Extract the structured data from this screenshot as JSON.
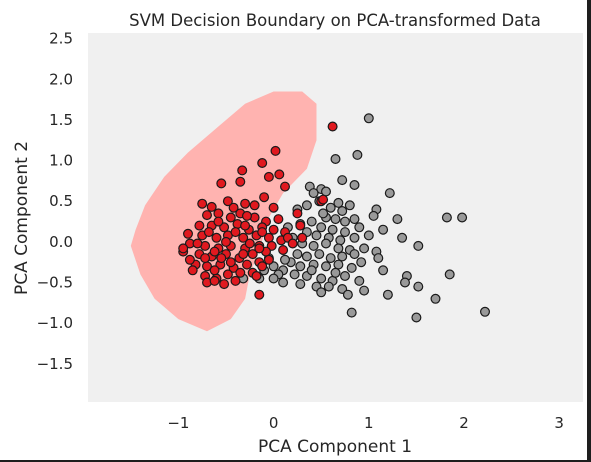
{
  "chart_data": {
    "type": "scatter",
    "title": "SVM Decision Boundary on PCA-transformed Data",
    "xlabel": "PCA Component 1",
    "ylabel": "PCA Component 2",
    "xlim": [
      -1.95,
      3.25
    ],
    "ylim": [
      -1.97,
      2.57
    ],
    "xticks": [
      -1,
      0,
      1,
      2,
      3
    ],
    "xtick_labels": [
      "−1",
      "0",
      "1",
      "2",
      "3"
    ],
    "yticks": [
      -1.5,
      -1.0,
      -0.5,
      0.0,
      0.5,
      1.0,
      1.5,
      2.0,
      2.5
    ],
    "ytick_labels": [
      "−1.5",
      "−1.0",
      "−0.5",
      "0.0",
      "0.5",
      "1.0",
      "1.5",
      "2.0",
      "2.5"
    ],
    "grid": false,
    "colors": {
      "background": "#f0f0f0",
      "decision_region": "#ffb3b0",
      "class_red": "#e0191f",
      "class_gray": "#999999",
      "marker_edge": "#1a1a1a"
    },
    "decision_region_outline": [
      [
        -1.5,
        -0.05
      ],
      [
        -1.45,
        0.15
      ],
      [
        -1.35,
        0.45
      ],
      [
        -1.15,
        0.8
      ],
      [
        -0.9,
        1.1
      ],
      [
        -0.6,
        1.4
      ],
      [
        -0.3,
        1.7
      ],
      [
        0.0,
        1.85
      ],
      [
        0.3,
        1.85
      ],
      [
        0.45,
        1.7
      ],
      [
        0.45,
        1.25
      ],
      [
        0.35,
        0.9
      ],
      [
        0.1,
        0.6
      ],
      [
        -0.05,
        0.3
      ],
      [
        -0.15,
        -0.1
      ],
      [
        -0.25,
        -0.4
      ],
      [
        -0.3,
        -0.7
      ],
      [
        -0.45,
        -0.95
      ],
      [
        -0.7,
        -1.1
      ],
      [
        -1.0,
        -0.95
      ],
      [
        -1.25,
        -0.7
      ],
      [
        -1.4,
        -0.4
      ]
    ],
    "series": [
      {
        "name": "",
        "color": "#e0191f",
        "points": [
          [
            0.62,
            1.42
          ],
          [
            0.02,
            1.12
          ],
          [
            -0.12,
            0.97
          ],
          [
            0.06,
            0.83
          ],
          [
            -0.33,
            0.88
          ],
          [
            -0.35,
            0.74
          ],
          [
            -0.05,
            0.8
          ],
          [
            0.12,
            0.68
          ],
          [
            -0.55,
            0.72
          ],
          [
            0.5,
            0.5
          ],
          [
            -0.75,
            0.47
          ],
          [
            -0.65,
            0.43
          ],
          [
            -0.3,
            0.47
          ],
          [
            -0.1,
            0.55
          ],
          [
            0.0,
            0.42
          ],
          [
            0.25,
            0.35
          ],
          [
            0.28,
            0.2
          ],
          [
            -0.58,
            0.35
          ],
          [
            -0.7,
            0.33
          ],
          [
            -0.45,
            0.3
          ],
          [
            -0.35,
            0.35
          ],
          [
            -0.2,
            0.3
          ],
          [
            -0.08,
            0.25
          ],
          [
            0.05,
            0.28
          ],
          [
            -0.65,
            0.2
          ],
          [
            -0.52,
            0.18
          ],
          [
            -0.38,
            0.22
          ],
          [
            -0.26,
            0.15
          ],
          [
            -0.12,
            0.18
          ],
          [
            0.12,
            0.12
          ],
          [
            -0.75,
            0.08
          ],
          [
            -0.6,
            0.05
          ],
          [
            -0.48,
            0.08
          ],
          [
            -0.32,
            0.05
          ],
          [
            -0.18,
            0.08
          ],
          [
            -0.05,
            0.05
          ],
          [
            0.08,
            0.02
          ],
          [
            -0.9,
            0.1
          ],
          [
            -0.88,
            -0.02
          ],
          [
            -0.72,
            -0.05
          ],
          [
            -0.58,
            -0.08
          ],
          [
            -0.45,
            -0.05
          ],
          [
            -0.3,
            -0.08
          ],
          [
            -0.15,
            -0.05
          ],
          [
            -0.02,
            -0.05
          ],
          [
            -0.95,
            -0.12
          ],
          [
            -0.78,
            -0.15
          ],
          [
            -0.65,
            -0.18
          ],
          [
            -0.5,
            -0.15
          ],
          [
            -0.36,
            -0.2
          ],
          [
            -0.22,
            -0.15
          ],
          [
            -0.08,
            -0.12
          ],
          [
            -0.82,
            -0.28
          ],
          [
            -0.7,
            -0.3
          ],
          [
            -0.56,
            -0.28
          ],
          [
            -0.42,
            -0.32
          ],
          [
            -0.28,
            -0.28
          ],
          [
            -0.15,
            -0.25
          ],
          [
            -0.72,
            -0.42
          ],
          [
            -0.6,
            -0.45
          ],
          [
            -0.48,
            -0.4
          ],
          [
            -0.35,
            -0.38
          ],
          [
            -0.22,
            -0.38
          ],
          [
            -0.7,
            -0.5
          ],
          [
            -0.62,
            -0.48
          ],
          [
            -0.8,
            -0.02
          ],
          [
            -0.68,
            0.12
          ],
          [
            -0.55,
            -0.2
          ],
          [
            -0.4,
            0.12
          ],
          [
            -0.25,
            -0.02
          ],
          [
            -0.12,
            -0.3
          ],
          [
            0.15,
            0.05
          ],
          [
            0.2,
            -0.02
          ],
          [
            -0.85,
            -0.35
          ],
          [
            -0.5,
            0.0
          ],
          [
            -0.62,
            -0.12
          ],
          [
            -0.32,
            -0.15
          ],
          [
            -0.42,
            0.42
          ],
          [
            -0.2,
            0.45
          ],
          [
            -0.15,
            -0.08
          ],
          [
            -0.95,
            -0.08
          ],
          [
            -0.52,
            -0.52
          ],
          [
            -0.62,
            -0.35
          ],
          [
            0.1,
            -0.1
          ],
          [
            0.3,
            0.05
          ],
          [
            -0.78,
            0.2
          ],
          [
            -0.4,
            -0.48
          ],
          [
            -0.28,
            0.32
          ],
          [
            -0.72,
            -0.2
          ],
          [
            -0.12,
            0.12
          ],
          [
            0.0,
            0.15
          ],
          [
            -0.18,
            -0.42
          ],
          [
            -0.88,
            -0.22
          ],
          [
            -0.58,
            0.25
          ],
          [
            -0.05,
            -0.22
          ],
          [
            -0.45,
            -0.25
          ],
          [
            -0.3,
            0.2
          ],
          [
            -0.15,
            -0.65
          ],
          [
            0.52,
            0.52
          ],
          [
            -0.48,
            0.5
          ]
        ]
      },
      {
        "name": "",
        "color": "#999999",
        "points": [
          [
            1.0,
            1.52
          ],
          [
            0.88,
            1.07
          ],
          [
            0.65,
            1.02
          ],
          [
            0.72,
            0.76
          ],
          [
            0.85,
            0.7
          ],
          [
            1.22,
            0.6
          ],
          [
            0.5,
            0.65
          ],
          [
            0.38,
            0.68
          ],
          [
            0.42,
            0.6
          ],
          [
            0.55,
            0.62
          ],
          [
            0.48,
            0.5
          ],
          [
            0.68,
            0.48
          ],
          [
            0.8,
            0.45
          ],
          [
            0.35,
            0.45
          ],
          [
            0.6,
            0.42
          ],
          [
            0.72,
            0.38
          ],
          [
            1.08,
            0.4
          ],
          [
            1.05,
            0.32
          ],
          [
            1.3,
            0.28
          ],
          [
            0.25,
            0.4
          ],
          [
            0.55,
            0.3
          ],
          [
            0.65,
            0.28
          ],
          [
            0.75,
            0.25
          ],
          [
            0.85,
            0.28
          ],
          [
            0.4,
            0.25
          ],
          [
            0.28,
            0.22
          ],
          [
            0.5,
            0.18
          ],
          [
            0.62,
            0.15
          ],
          [
            0.75,
            0.12
          ],
          [
            0.9,
            0.18
          ],
          [
            1.15,
            0.15
          ],
          [
            1.35,
            0.05
          ],
          [
            0.35,
            0.12
          ],
          [
            0.45,
            0.08
          ],
          [
            0.58,
            0.05
          ],
          [
            0.7,
            0.02
          ],
          [
            0.85,
            0.05
          ],
          [
            1.0,
            0.08
          ],
          [
            1.52,
            -0.05
          ],
          [
            1.82,
            0.3
          ],
          [
            1.98,
            0.3
          ],
          [
            0.2,
            0.05
          ],
          [
            0.3,
            -0.02
          ],
          [
            0.42,
            -0.05
          ],
          [
            0.55,
            -0.02
          ],
          [
            0.68,
            -0.08
          ],
          [
            0.8,
            -0.1
          ],
          [
            0.95,
            -0.08
          ],
          [
            1.08,
            -0.12
          ],
          [
            0.25,
            -0.15
          ],
          [
            0.35,
            -0.18
          ],
          [
            0.48,
            -0.15
          ],
          [
            0.6,
            -0.2
          ],
          [
            0.72,
            -0.18
          ],
          [
            0.85,
            -0.15
          ],
          [
            1.1,
            -0.2
          ],
          [
            0.18,
            -0.25
          ],
          [
            0.28,
            -0.3
          ],
          [
            0.42,
            -0.28
          ],
          [
            0.55,
            -0.3
          ],
          [
            0.68,
            -0.28
          ],
          [
            0.82,
            -0.32
          ],
          [
            1.15,
            -0.35
          ],
          [
            1.4,
            -0.42
          ],
          [
            1.85,
            -0.4
          ],
          [
            0.1,
            -0.35
          ],
          [
            0.22,
            -0.4
          ],
          [
            0.35,
            -0.42
          ],
          [
            0.5,
            -0.45
          ],
          [
            0.62,
            -0.48
          ],
          [
            0.75,
            -0.42
          ],
          [
            0.9,
            -0.48
          ],
          [
            1.38,
            -0.5
          ],
          [
            0.1,
            -0.5
          ],
          [
            0.28,
            -0.52
          ],
          [
            0.45,
            -0.55
          ],
          [
            0.58,
            -0.55
          ],
          [
            0.72,
            -0.58
          ],
          [
            0.95,
            -0.6
          ],
          [
            1.2,
            -0.65
          ],
          [
            1.52,
            -0.55
          ],
          [
            1.7,
            -0.7
          ],
          [
            0.5,
            -0.62
          ],
          [
            0.78,
            -0.65
          ],
          [
            0.82,
            -0.87
          ],
          [
            1.5,
            -0.93
          ],
          [
            2.22,
            -0.86
          ],
          [
            0.0,
            -0.3
          ],
          [
            -0.05,
            -0.2
          ],
          [
            0.05,
            -0.4
          ],
          [
            -0.1,
            -0.35
          ],
          [
            0.12,
            -0.22
          ],
          [
            -0.15,
            -0.45
          ],
          [
            -0.32,
            -0.45
          ],
          [
            0.0,
            -0.45
          ],
          [
            0.15,
            0.18
          ],
          [
            0.65,
            -0.38
          ],
          [
            0.4,
            -0.35
          ],
          [
            0.92,
            -0.25
          ],
          [
            0.52,
            0.35
          ]
        ]
      }
    ]
  }
}
